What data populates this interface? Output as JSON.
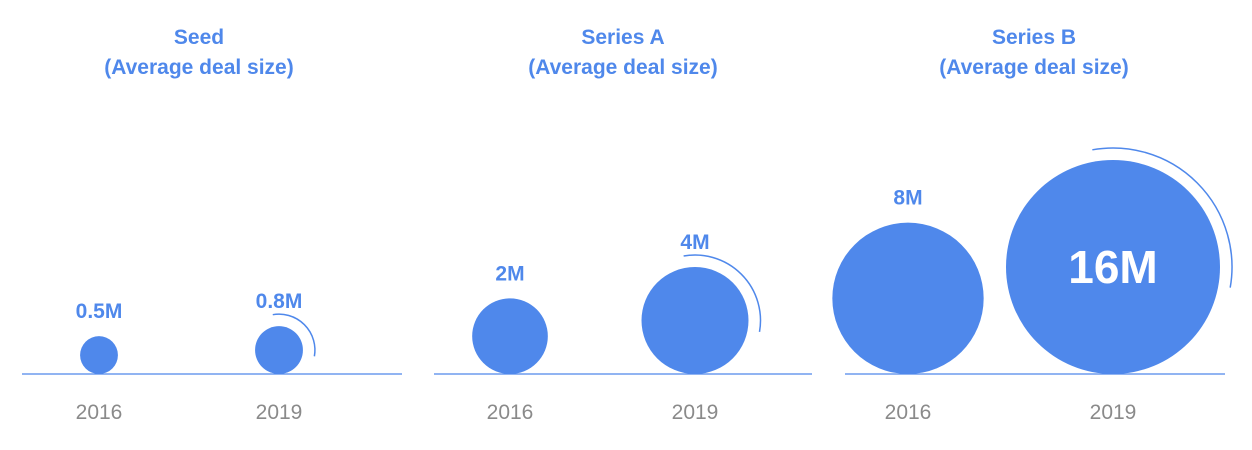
{
  "colors": {
    "accent": "#4F88EB",
    "year_text": "#8A8A8A",
    "background": "#FFFFFF"
  },
  "chart_data": [
    {
      "type": "bubble",
      "title": "Seed",
      "subtitle": "(Average deal size)",
      "categories": [
        "2016",
        "2019"
      ],
      "values": [
        0.5,
        0.8
      ],
      "value_labels": [
        "0.5M",
        "0.8M"
      ],
      "unit": "M"
    },
    {
      "type": "bubble",
      "title": "Series A",
      "subtitle": "(Average deal size)",
      "categories": [
        "2016",
        "2019"
      ],
      "values": [
        2,
        4
      ],
      "value_labels": [
        "2M",
        "4M"
      ],
      "unit": "M"
    },
    {
      "type": "bubble",
      "title": "Series B",
      "subtitle": "(Average deal size)",
      "categories": [
        "2016",
        "2019"
      ],
      "values": [
        8,
        16
      ],
      "value_labels": [
        "8M",
        "16M"
      ],
      "unit": "M"
    }
  ]
}
